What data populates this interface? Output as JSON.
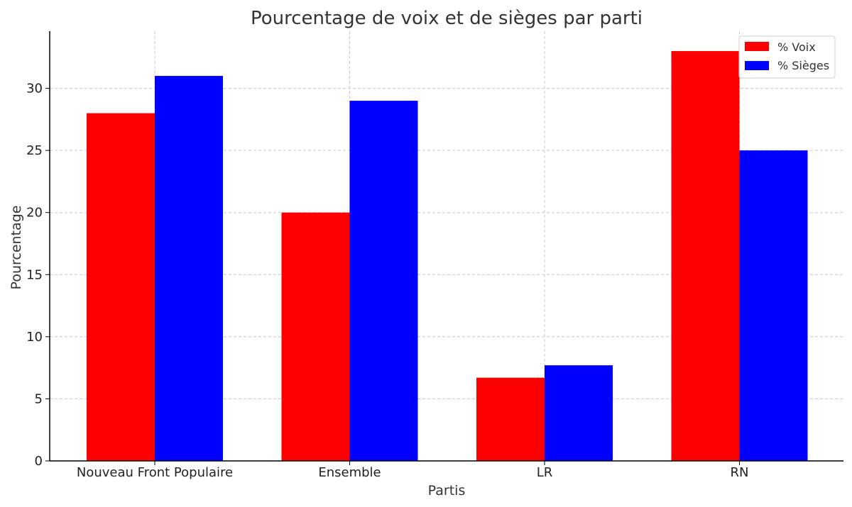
{
  "chart_data": {
    "type": "bar",
    "title": "Pourcentage de voix et de sièges par parti",
    "xlabel": "Partis",
    "ylabel": "Pourcentage",
    "categories": [
      "Nouveau Front Populaire",
      "Ensemble",
      "LR",
      "RN"
    ],
    "series": [
      {
        "name": "% Voix",
        "color": "#ff0000",
        "values": [
          28,
          20,
          6.7,
          33
        ]
      },
      {
        "name": "% Sièges",
        "color": "#0000ff",
        "values": [
          31,
          29,
          7.7,
          25
        ]
      }
    ],
    "ylim": [
      0,
      34.6
    ],
    "yticks": [
      0,
      5,
      10,
      15,
      20,
      25,
      30
    ],
    "grid": true,
    "legend_position": "top-right"
  }
}
